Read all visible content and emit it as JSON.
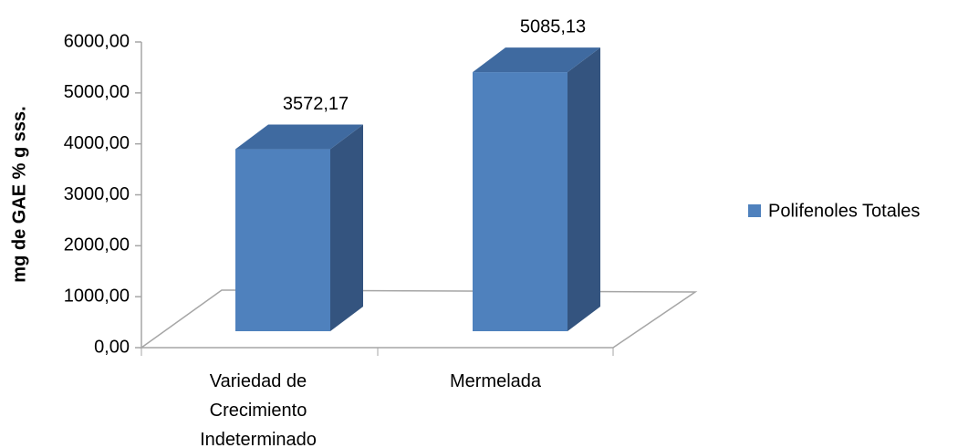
{
  "chart_data": {
    "type": "bar3d",
    "y_axis_label": "mg de GAE % g sss.",
    "categories": [
      "Variedad de Crecimiento Indeterminado",
      "Mermelada"
    ],
    "series": [
      {
        "name": "Polifenoles Totales",
        "color": "#4f81bd",
        "values": [
          3572.17,
          5085.13
        ],
        "value_labels": [
          "3572,17",
          "5085,13"
        ]
      }
    ],
    "ylim": [
      0,
      6000
    ],
    "yticks": [
      {
        "value": 0,
        "label": "0,00"
      },
      {
        "value": 1000,
        "label": "1000,00"
      },
      {
        "value": 2000,
        "label": "2000,00"
      },
      {
        "value": 3000,
        "label": "3000,00"
      },
      {
        "value": 4000,
        "label": "4000,00"
      },
      {
        "value": 5000,
        "label": "5000,00"
      },
      {
        "value": 6000,
        "label": "6000,00"
      }
    ],
    "legend": "right"
  }
}
